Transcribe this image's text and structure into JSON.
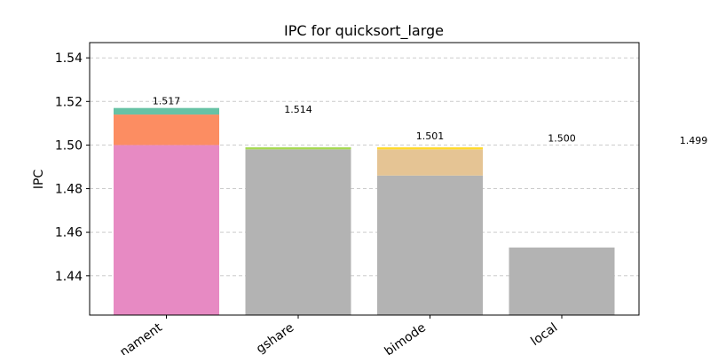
{
  "chart_data": {
    "type": "bar",
    "stacked": true,
    "title": "IPC for quicksort_large",
    "xlabel": "",
    "ylabel": "IPC",
    "ylim": [
      1.422,
      1.547
    ],
    "yticks": [
      "1.44",
      "1.46",
      "1.48",
      "1.50",
      "1.52",
      "1.54"
    ],
    "grid": "horizontal dashed",
    "legend": "none",
    "categories": [
      "tournament",
      "gshare",
      "bimode",
      "local"
    ],
    "category_labels_visible": [
      "nament",
      "gshare",
      "bimode",
      "local"
    ],
    "bars": [
      {
        "category": "tournament",
        "segments": [
          {
            "value": 1.5,
            "color": "#e78ac3"
          },
          {
            "value": 1.514,
            "color": "#fc8d62"
          },
          {
            "value": 1.517,
            "color": "#66c2a5"
          }
        ]
      },
      {
        "category": "gshare",
        "segments": [
          {
            "value": 1.498,
            "color": "#b3b3b3"
          },
          {
            "value": 1.499,
            "color": "#a6d854"
          }
        ]
      },
      {
        "category": "bimode",
        "segments": [
          {
            "value": 1.486,
            "color": "#b3b3b3"
          },
          {
            "value": 1.498,
            "color": "#e5c494"
          },
          {
            "value": 1.499,
            "color": "#ffd92f"
          }
        ]
      },
      {
        "category": "local",
        "segments": [
          {
            "value": 1.453,
            "color": "#b3b3b3"
          }
        ]
      }
    ],
    "data_labels": [
      {
        "text": "1.517",
        "value": 1.517,
        "slot": 0
      },
      {
        "text": "1.514",
        "value": 1.514,
        "slot": 1
      },
      {
        "text": "1.501",
        "value": 1.501,
        "slot": 2
      },
      {
        "text": "1.500",
        "value": 1.5,
        "slot": 3
      },
      {
        "text": "1.499",
        "value": 1.499,
        "slot": 4
      }
    ]
  }
}
